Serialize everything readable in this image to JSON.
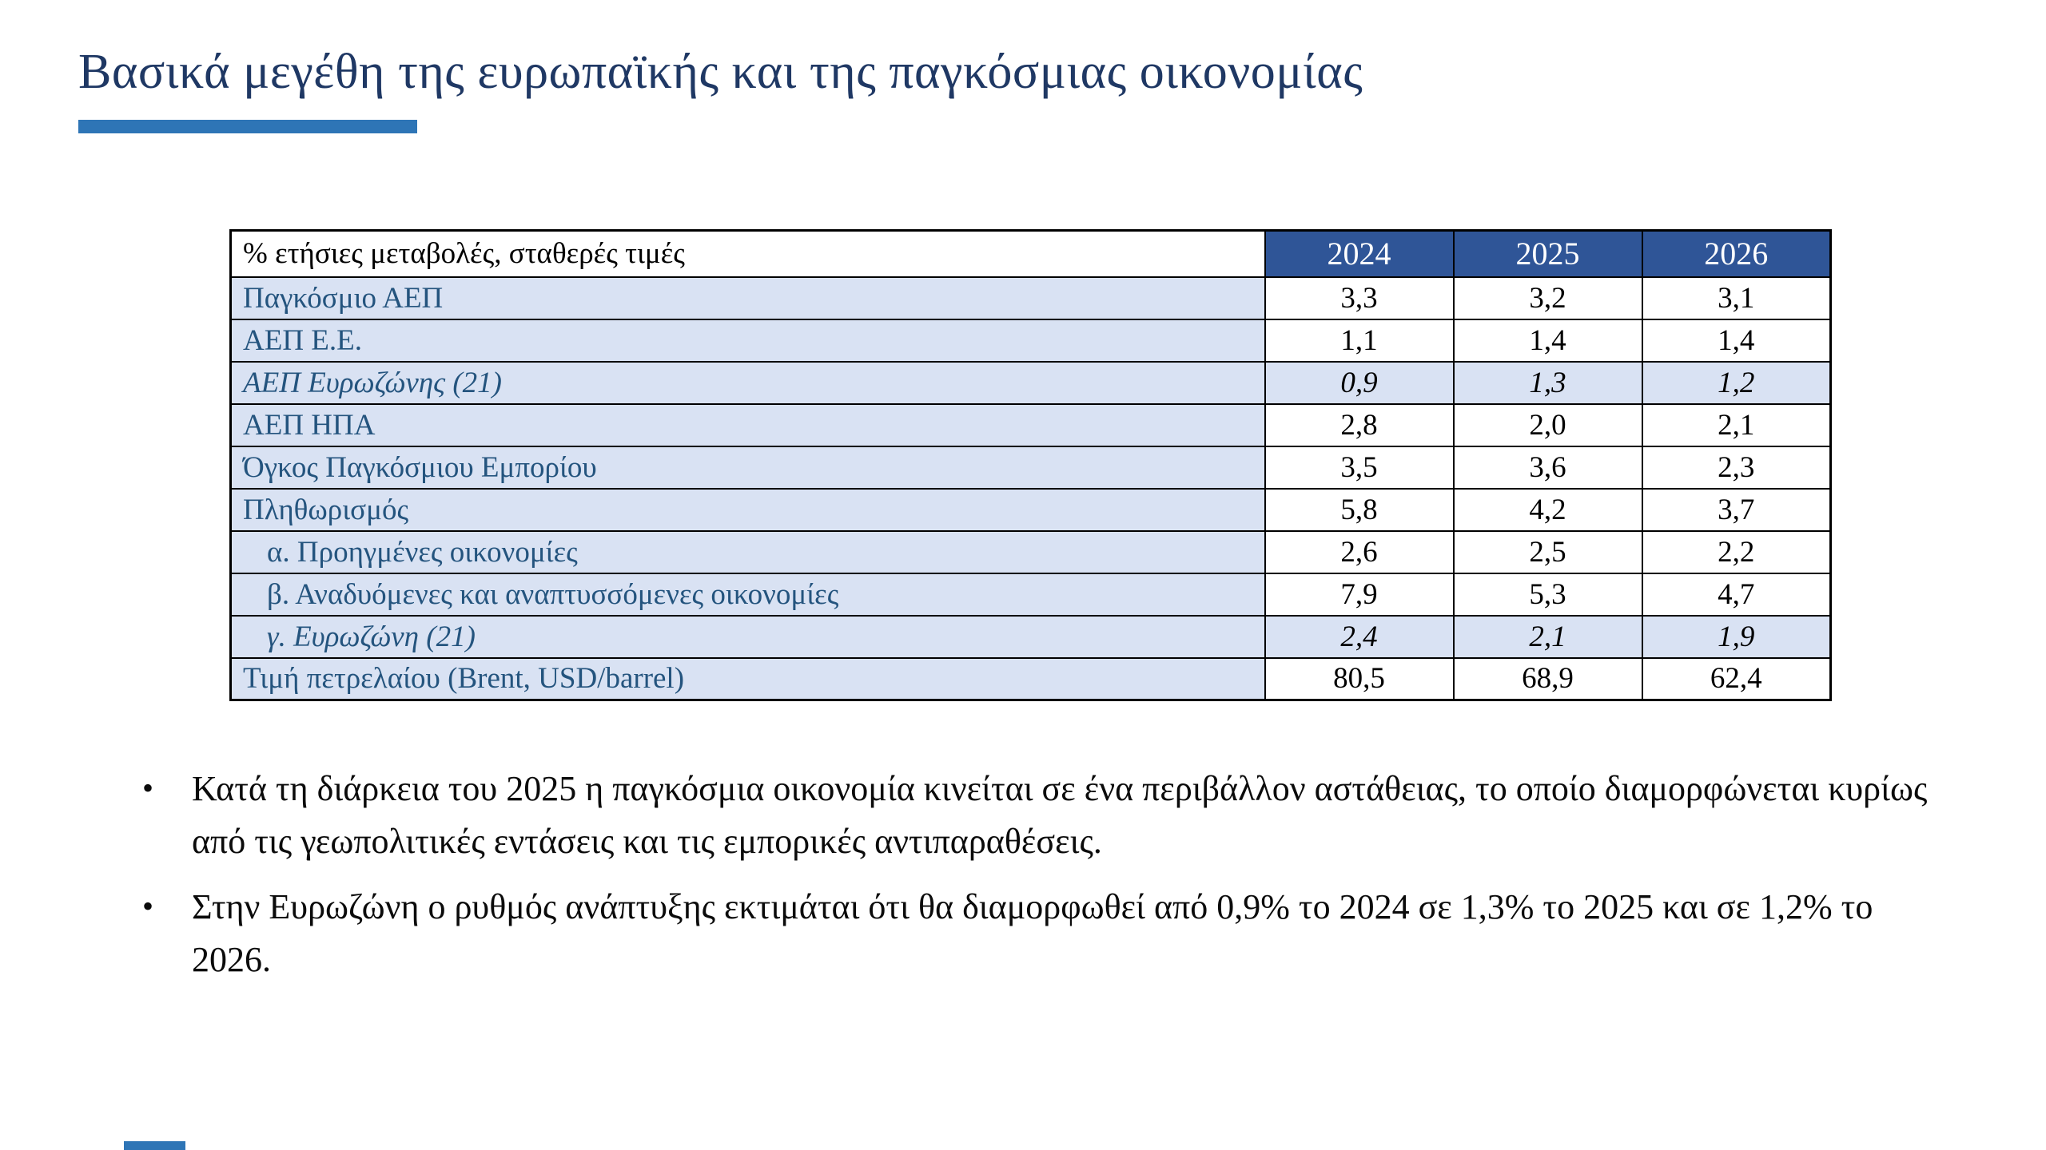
{
  "slide": {
    "title": "Βασικά μεγέθη της ευρωπαϊκής και της παγκόσμιας οικονομίας",
    "accent_color": "#2E75B6",
    "title_color": "#1F3864"
  },
  "table": {
    "header": {
      "label": "% ετήσιες μεταβολές, σταθερές τιμές",
      "years": [
        "2024",
        "2025",
        "2026"
      ]
    },
    "rows": [
      {
        "label": "Παγκόσμιο ΑΕΠ",
        "values": [
          "3,3",
          "3,2",
          "3,1"
        ]
      },
      {
        "label": "ΑΕΠ Ε.Ε.",
        "values": [
          "1,1",
          "1,4",
          "1,4"
        ]
      },
      {
        "label": "ΑΕΠ Ευρωζώνης (21)",
        "values": [
          "0,9",
          "1,3",
          "1,2"
        ]
      },
      {
        "label": "ΑΕΠ ΗΠΑ",
        "values": [
          "2,8",
          "2,0",
          "2,1"
        ]
      },
      {
        "label": "Όγκος Παγκόσμιου Εμπορίου",
        "values": [
          "3,5",
          "3,6",
          "2,3"
        ]
      },
      {
        "label": "Πληθωρισμός",
        "values": [
          "5,8",
          "4,2",
          "3,7"
        ]
      },
      {
        "label": "α. Προηγμένες οικονομίες",
        "values": [
          "2,6",
          "2,5",
          "2,2"
        ]
      },
      {
        "label": "β. Αναδυόμενες και αναπτυσσόμενες οικονομίες",
        "values": [
          "7,9",
          "5,3",
          "4,7"
        ]
      },
      {
        "label": "γ. Ευρωζώνη (21)",
        "values": [
          "2,4",
          "2,1",
          "1,9"
        ]
      },
      {
        "label": "Τιμή πετρελαίου (Brent, USD/barrel)",
        "values": [
          "80,5",
          "68,9",
          "62,4"
        ]
      }
    ],
    "colors": {
      "header_bg": "#2F5597",
      "header_text": "#FFFFFF",
      "label_bg": "#D9E2F3",
      "label_text": "#24547E",
      "value_text": "#000000",
      "border": "#000000"
    }
  },
  "bullets": {
    "marker": "•",
    "items": [
      "Κατά τη διάρκεια του 2025 η παγκόσμια οικονομία κινείται σε ένα περιβάλλον αστάθειας, το οποίο διαμορφώνεται κυρίως από τις γεωπολιτικές εντάσεις και τις εμπορικές αντιπαραθέσεις.",
      "Στην Ευρωζώνη ο ρυθμός ανάπτυξης εκτιμάται ότι θα διαμορφωθεί από 0,9% το 2024 σε 1,3% το 2025 και σε 1,2% το 2026."
    ]
  }
}
